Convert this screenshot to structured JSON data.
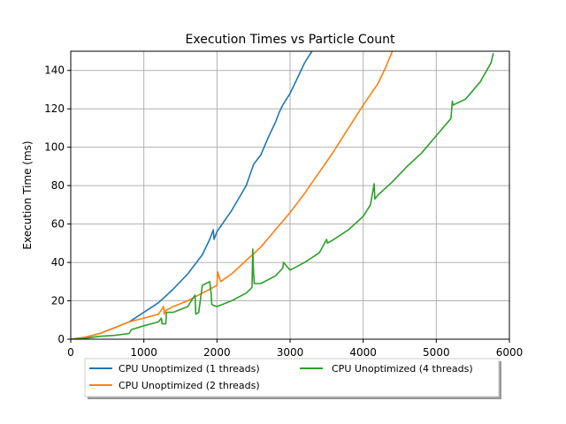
{
  "chart_data": {
    "type": "line",
    "title": "Execution Times vs Particle Count",
    "xlabel": "",
    "ylabel": "Execution Time (ms)",
    "xlim": [
      0,
      6000
    ],
    "ylim": [
      0,
      150
    ],
    "xticks": [
      0,
      1000,
      2000,
      3000,
      4000,
      5000,
      6000
    ],
    "yticks": [
      0,
      20,
      40,
      60,
      80,
      100,
      120,
      140
    ],
    "grid": true,
    "legend_position": "below plot, left",
    "series": [
      {
        "name": "CPU Unoptimized (1 threads)",
        "color": "#1f77b4",
        "x": [
          0,
          200,
          400,
          600,
          800,
          1000,
          1200,
          1400,
          1600,
          1800,
          1900,
          1950,
          1960,
          2000,
          2200,
          2400,
          2500,
          2600,
          2700,
          2800,
          2850,
          2900,
          3000,
          3100,
          3200,
          3300
        ],
        "y": [
          0,
          1,
          3,
          6,
          9,
          14,
          19,
          26,
          34,
          44,
          52,
          57,
          52,
          56,
          67,
          80,
          91,
          96,
          105,
          113,
          118,
          122,
          128,
          136,
          144,
          150
        ]
      },
      {
        "name": "CPU Unoptimized (2 threads)",
        "color": "#ff7f0e",
        "x": [
          0,
          200,
          400,
          600,
          800,
          1000,
          1200,
          1270,
          1280,
          1300,
          1400,
          1600,
          1800,
          1900,
          2000,
          2010,
          2050,
          2200,
          2400,
          2600,
          2800,
          3000,
          3200,
          3400,
          3600,
          3800,
          4000,
          4200,
          4300,
          4400
        ],
        "y": [
          0,
          1,
          3,
          6,
          9,
          11,
          13,
          17,
          13,
          15,
          17,
          20,
          24,
          26,
          28,
          35,
          30,
          34,
          41,
          48,
          57,
          66,
          76,
          87,
          98,
          110,
          122,
          133,
          141,
          150
        ]
      },
      {
        "name": "CPU Unoptimized (4 threads)",
        "color": "#2ca02c",
        "x": [
          0,
          200,
          400,
          600,
          800,
          830,
          1000,
          1200,
          1240,
          1250,
          1300,
          1310,
          1400,
          1600,
          1650,
          1700,
          1710,
          1750,
          1800,
          1900,
          1920,
          1930,
          2000,
          2200,
          2400,
          2480,
          2490,
          2500,
          2510,
          2600,
          2800,
          2900,
          2910,
          3000,
          3200,
          3400,
          3500,
          3510,
          3600,
          3800,
          4000,
          4100,
          4150,
          4160,
          4200,
          4400,
          4600,
          4800,
          5000,
          5200,
          5220,
          5230,
          5400,
          5600,
          5750,
          5780
        ],
        "y": [
          0,
          0.5,
          1.5,
          2,
          3,
          5,
          7,
          9,
          11,
          8,
          8,
          14,
          14,
          17,
          20,
          23,
          13,
          14,
          28,
          30,
          24,
          18,
          17,
          20,
          24,
          27,
          47,
          35,
          29,
          29,
          33,
          37,
          40,
          36,
          40,
          45,
          52,
          50,
          52,
          57,
          64,
          70,
          81,
          73,
          75,
          82,
          90,
          97,
          106,
          115,
          124,
          122,
          125,
          134,
          144,
          149
        ]
      }
    ]
  }
}
